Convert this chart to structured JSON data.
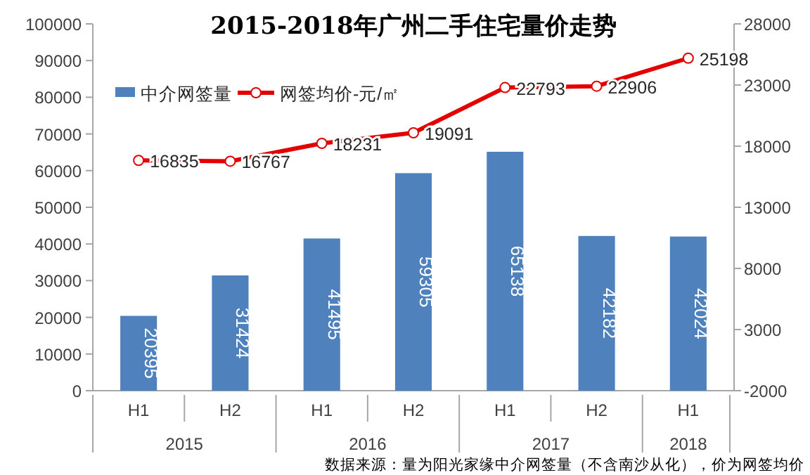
{
  "chart_data": {
    "type": "bar",
    "title": "2015-2018年广州二手住宅量价走势",
    "categories": [
      "H1",
      "H2",
      "H1",
      "H2",
      "H1",
      "H2",
      "H1"
    ],
    "series": [
      {
        "name": "中介网签量",
        "color": "#4f81bd",
        "values": [
          20395,
          31424,
          41495,
          59305,
          65138,
          42182,
          42024
        ]
      },
      {
        "name": "网签均价-元/㎡",
        "type": "line",
        "axis": "y2",
        "color": "#e30000",
        "marker": "circle",
        "values": [
          16835,
          16767,
          18231,
          19091,
          22793,
          22906,
          25198
        ]
      }
    ],
    "data_labels": true,
    "ylim": [
      0,
      100000
    ],
    "yticks": [
      0,
      10000,
      20000,
      30000,
      40000,
      50000,
      60000,
      70000,
      80000,
      90000,
      100000
    ],
    "y2lim": [
      -2000,
      28000
    ],
    "y2ticks": [
      -2000,
      3000,
      8000,
      13000,
      18000,
      23000,
      28000
    ],
    "legend": "top left",
    "grid": false,
    "annotations": [
      "2015",
      "2016",
      "2017",
      "2018",
      "数据来源：量为阳光家缘中介网签量（不含南沙从化），价为网签均价"
    ]
  }
}
